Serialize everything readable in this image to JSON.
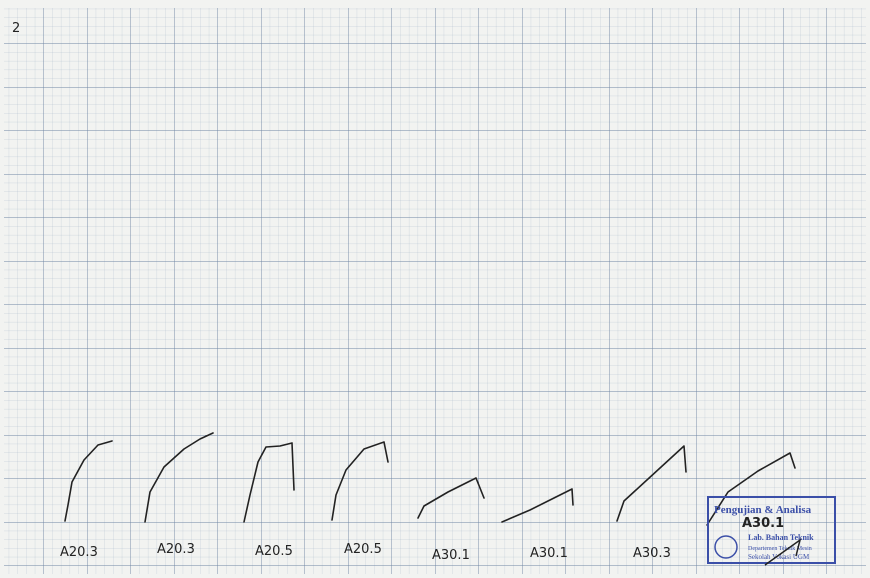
{
  "page_number": "2",
  "specimens": [
    {
      "label": "A20.3"
    },
    {
      "label": "A20.3"
    },
    {
      "label": "A20.5"
    },
    {
      "label": "A20.5"
    },
    {
      "label": "A30.1"
    },
    {
      "label": "A30.1"
    },
    {
      "label": "A30.3"
    }
  ],
  "stamp": {
    "title": "Pengujian & Analisa",
    "handwritten": "A30.1",
    "lines": [
      "Lab. Bahan Teknik",
      "Departemen Teknik Mesin",
      "Sekolah Vokasi UGM"
    ]
  }
}
